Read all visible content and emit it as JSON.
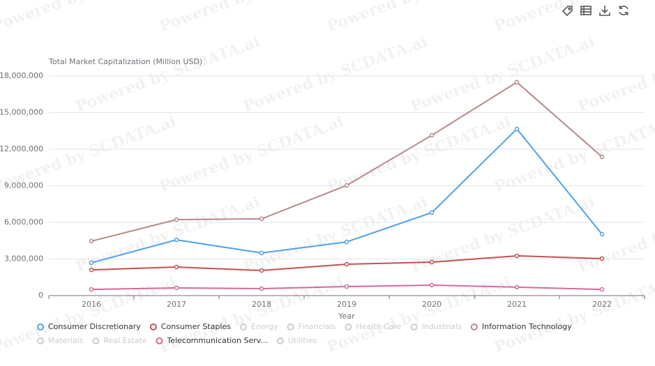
{
  "chart_data": {
    "type": "line",
    "watermark": "Powered by SCDATA.ai",
    "y_label": "Total Market Capitalization (Million USD)",
    "x_label": "Year",
    "categories": [
      "2016",
      "2017",
      "2018",
      "2019",
      "2020",
      "2021",
      "2022"
    ],
    "ylim": [
      0,
      18000000
    ],
    "yticks": [
      0,
      {
        "value": 3000000,
        "label": "3,000,000"
      },
      {
        "value": 6000000,
        "label": "6,000,000"
      },
      {
        "value": 9000000,
        "label": "9,000,000"
      },
      {
        "value": 12000000,
        "label": "12,000,000"
      },
      {
        "value": 15000000,
        "label": "15,000,000"
      },
      {
        "value": 18000000,
        "label": "18,000,000"
      }
    ],
    "grid": true,
    "legend": "bottom",
    "hidden_color": "#cccccc",
    "series": [
      {
        "name": "Consumer Discretionary",
        "color": "#4da2e8",
        "values": [
          2690000,
          4570000,
          3490000,
          4400000,
          6800000,
          13660000,
          5030000
        ]
      },
      {
        "name": "Consumer Staples",
        "color": "#c5504f",
        "values": [
          2110000,
          2340000,
          2060000,
          2570000,
          2740000,
          3260000,
          3030000
        ]
      },
      {
        "name": "Energy",
        "visible": false
      },
      {
        "name": "Financials",
        "visible": false
      },
      {
        "name": "Health Care",
        "visible": false
      },
      {
        "name": "Industrials",
        "visible": false
      },
      {
        "name": "Information Technology",
        "color": "#b58a8a",
        "values": [
          4460000,
          6230000,
          6290000,
          9030000,
          13140000,
          17490000,
          11370000
        ]
      },
      {
        "name": "Materials",
        "visible": false
      },
      {
        "name": "Real Estate",
        "visible": false
      },
      {
        "name": "Telecommunication Serv...",
        "color": "#d8689a",
        "values": [
          510000,
          630000,
          570000,
          740000,
          860000,
          690000,
          510000
        ]
      },
      {
        "name": "Utilities",
        "visible": false
      }
    ]
  }
}
